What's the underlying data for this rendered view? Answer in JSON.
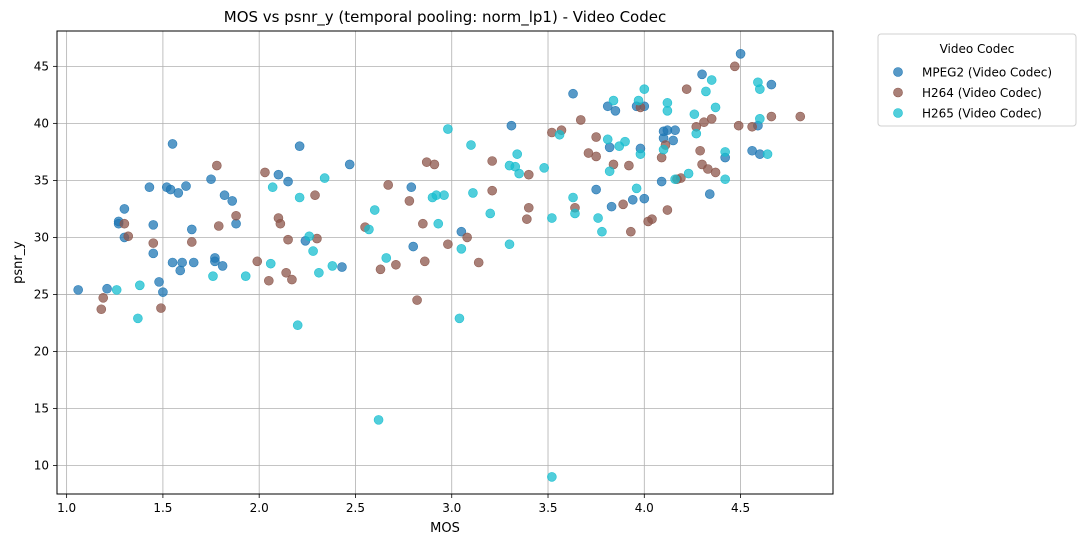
{
  "chart_data": {
    "type": "scatter",
    "title": "MOS vs psnr_y (temporal pooling: norm_lp1) - Video Codec",
    "xlabel": "MOS",
    "ylabel": "psnr_y",
    "xlim": [
      0.95,
      4.98
    ],
    "ylim": [
      7.5,
      48.1
    ],
    "xticks": [
      1.0,
      1.5,
      2.0,
      2.5,
      3.0,
      3.5,
      4.0,
      4.5
    ],
    "xtick_labels": [
      "1.0",
      "1.5",
      "2.0",
      "2.5",
      "3.0",
      "3.5",
      "4.0",
      "4.5"
    ],
    "yticks": [
      10,
      15,
      20,
      25,
      30,
      35,
      40,
      45
    ],
    "ytick_labels": [
      "10",
      "15",
      "20",
      "25",
      "30",
      "35",
      "40",
      "45"
    ],
    "grid": true,
    "legend": {
      "title": "Video Codec",
      "placement": "outside-top-right"
    },
    "series": [
      {
        "name": "MPEG2 (Video Codec)",
        "color": "#1f77b4",
        "points": [
          [
            1.06,
            25.4
          ],
          [
            1.21,
            25.5
          ],
          [
            1.27,
            31.4
          ],
          [
            1.27,
            31.2
          ],
          [
            1.3,
            32.5
          ],
          [
            1.3,
            30.0
          ],
          [
            1.43,
            34.4
          ],
          [
            1.45,
            31.1
          ],
          [
            1.45,
            28.6
          ],
          [
            1.48,
            26.1
          ],
          [
            1.5,
            25.2
          ],
          [
            1.52,
            34.4
          ],
          [
            1.54,
            34.2
          ],
          [
            1.55,
            38.2
          ],
          [
            1.55,
            27.8
          ],
          [
            1.58,
            33.9
          ],
          [
            1.59,
            27.1
          ],
          [
            1.6,
            27.8
          ],
          [
            1.62,
            34.5
          ],
          [
            1.65,
            30.7
          ],
          [
            1.66,
            27.8
          ],
          [
            1.75,
            35.1
          ],
          [
            1.77,
            28.2
          ],
          [
            1.77,
            27.9
          ],
          [
            1.81,
            27.5
          ],
          [
            1.82,
            33.7
          ],
          [
            1.86,
            33.2
          ],
          [
            1.88,
            31.2
          ],
          [
            2.1,
            35.5
          ],
          [
            2.15,
            34.9
          ],
          [
            2.21,
            38.0
          ],
          [
            2.24,
            29.7
          ],
          [
            2.43,
            27.4
          ],
          [
            2.47,
            36.4
          ],
          [
            2.79,
            34.4
          ],
          [
            2.8,
            29.2
          ],
          [
            3.05,
            30.5
          ],
          [
            3.31,
            39.8
          ],
          [
            3.63,
            42.6
          ],
          [
            3.75,
            34.2
          ],
          [
            3.81,
            41.5
          ],
          [
            3.82,
            37.9
          ],
          [
            3.83,
            32.7
          ],
          [
            3.85,
            41.1
          ],
          [
            3.94,
            33.3
          ],
          [
            3.96,
            41.5
          ],
          [
            3.98,
            37.8
          ],
          [
            4.0,
            33.4
          ],
          [
            4.0,
            41.5
          ],
          [
            4.09,
            34.9
          ],
          [
            4.1,
            39.3
          ],
          [
            4.1,
            38.7
          ],
          [
            4.12,
            39.4
          ],
          [
            4.15,
            38.5
          ],
          [
            4.16,
            39.4
          ],
          [
            4.3,
            44.3
          ],
          [
            4.34,
            33.8
          ],
          [
            4.42,
            37.0
          ],
          [
            4.5,
            46.1
          ],
          [
            4.56,
            37.6
          ],
          [
            4.59,
            39.8
          ],
          [
            4.6,
            37.3
          ],
          [
            4.66,
            43.4
          ]
        ]
      },
      {
        "name": "H264 (Video Codec)",
        "color": "#8c564b",
        "points": [
          [
            1.18,
            23.7
          ],
          [
            1.19,
            24.7
          ],
          [
            1.3,
            31.2
          ],
          [
            1.32,
            30.1
          ],
          [
            1.45,
            29.5
          ],
          [
            1.49,
            23.8
          ],
          [
            1.65,
            29.6
          ],
          [
            1.78,
            36.3
          ],
          [
            1.79,
            31.0
          ],
          [
            1.88,
            31.9
          ],
          [
            1.99,
            27.9
          ],
          [
            2.03,
            35.7
          ],
          [
            2.05,
            26.2
          ],
          [
            2.1,
            31.7
          ],
          [
            2.11,
            31.2
          ],
          [
            2.14,
            26.9
          ],
          [
            2.15,
            29.8
          ],
          [
            2.17,
            26.3
          ],
          [
            2.29,
            33.7
          ],
          [
            2.3,
            29.9
          ],
          [
            2.55,
            30.9
          ],
          [
            2.63,
            27.2
          ],
          [
            2.67,
            34.6
          ],
          [
            2.71,
            27.6
          ],
          [
            2.78,
            33.2
          ],
          [
            2.82,
            24.5
          ],
          [
            2.85,
            31.2
          ],
          [
            2.86,
            27.9
          ],
          [
            2.87,
            36.6
          ],
          [
            2.91,
            36.4
          ],
          [
            2.98,
            29.4
          ],
          [
            3.08,
            30.0
          ],
          [
            3.14,
            27.8
          ],
          [
            3.21,
            36.7
          ],
          [
            3.21,
            34.1
          ],
          [
            3.39,
            31.6
          ],
          [
            3.4,
            32.6
          ],
          [
            3.4,
            35.5
          ],
          [
            3.52,
            39.2
          ],
          [
            3.57,
            39.4
          ],
          [
            3.64,
            32.6
          ],
          [
            3.67,
            40.3
          ],
          [
            3.71,
            37.4
          ],
          [
            3.75,
            38.8
          ],
          [
            3.75,
            37.1
          ],
          [
            3.84,
            36.4
          ],
          [
            3.89,
            32.9
          ],
          [
            3.92,
            36.3
          ],
          [
            3.93,
            30.5
          ],
          [
            3.98,
            41.4
          ],
          [
            4.02,
            31.4
          ],
          [
            4.04,
            31.6
          ],
          [
            4.09,
            37.0
          ],
          [
            4.11,
            38.1
          ],
          [
            4.12,
            32.4
          ],
          [
            4.17,
            35.1
          ],
          [
            4.19,
            35.2
          ],
          [
            4.22,
            43.0
          ],
          [
            4.27,
            39.7
          ],
          [
            4.29,
            37.6
          ],
          [
            4.3,
            36.4
          ],
          [
            4.31,
            40.1
          ],
          [
            4.33,
            36.0
          ],
          [
            4.35,
            40.4
          ],
          [
            4.37,
            35.7
          ],
          [
            4.47,
            45.0
          ],
          [
            4.49,
            39.8
          ],
          [
            4.56,
            39.7
          ],
          [
            4.66,
            40.6
          ],
          [
            4.81,
            40.6
          ]
        ]
      },
      {
        "name": "H265 (Video Codec)",
        "color": "#17becf",
        "points": [
          [
            1.26,
            25.4
          ],
          [
            1.37,
            22.9
          ],
          [
            1.38,
            25.8
          ],
          [
            1.76,
            26.6
          ],
          [
            1.93,
            26.6
          ],
          [
            2.06,
            27.7
          ],
          [
            2.07,
            34.4
          ],
          [
            2.2,
            22.3
          ],
          [
            2.21,
            33.5
          ],
          [
            2.26,
            30.1
          ],
          [
            2.28,
            28.8
          ],
          [
            2.31,
            26.9
          ],
          [
            2.34,
            35.2
          ],
          [
            2.38,
            27.5
          ],
          [
            2.57,
            30.7
          ],
          [
            2.6,
            32.4
          ],
          [
            2.62,
            14.0
          ],
          [
            2.66,
            28.2
          ],
          [
            2.9,
            33.5
          ],
          [
            2.92,
            33.7
          ],
          [
            2.93,
            31.2
          ],
          [
            2.96,
            33.7
          ],
          [
            2.98,
            39.5
          ],
          [
            3.04,
            22.9
          ],
          [
            3.05,
            29.0
          ],
          [
            3.1,
            38.1
          ],
          [
            3.11,
            33.9
          ],
          [
            3.2,
            32.1
          ],
          [
            3.3,
            29.4
          ],
          [
            3.3,
            36.3
          ],
          [
            3.33,
            36.2
          ],
          [
            3.34,
            37.3
          ],
          [
            3.35,
            35.6
          ],
          [
            3.48,
            36.1
          ],
          [
            3.52,
            31.7
          ],
          [
            3.52,
            9.0
          ],
          [
            3.56,
            39.0
          ],
          [
            3.63,
            33.5
          ],
          [
            3.64,
            32.1
          ],
          [
            3.76,
            31.7
          ],
          [
            3.78,
            30.5
          ],
          [
            3.81,
            38.6
          ],
          [
            3.82,
            35.8
          ],
          [
            3.84,
            42.0
          ],
          [
            3.87,
            38.0
          ],
          [
            3.9,
            38.4
          ],
          [
            3.96,
            34.3
          ],
          [
            3.97,
            42.0
          ],
          [
            3.98,
            37.3
          ],
          [
            4.0,
            43.0
          ],
          [
            4.1,
            37.7
          ],
          [
            4.12,
            41.8
          ],
          [
            4.12,
            41.1
          ],
          [
            4.16,
            35.1
          ],
          [
            4.23,
            35.6
          ],
          [
            4.26,
            40.8
          ],
          [
            4.27,
            39.1
          ],
          [
            4.32,
            42.8
          ],
          [
            4.35,
            43.8
          ],
          [
            4.37,
            41.4
          ],
          [
            4.42,
            35.1
          ],
          [
            4.42,
            37.5
          ],
          [
            4.59,
            43.6
          ],
          [
            4.6,
            43.0
          ],
          [
            4.6,
            40.4
          ],
          [
            4.64,
            37.3
          ]
        ]
      }
    ]
  }
}
